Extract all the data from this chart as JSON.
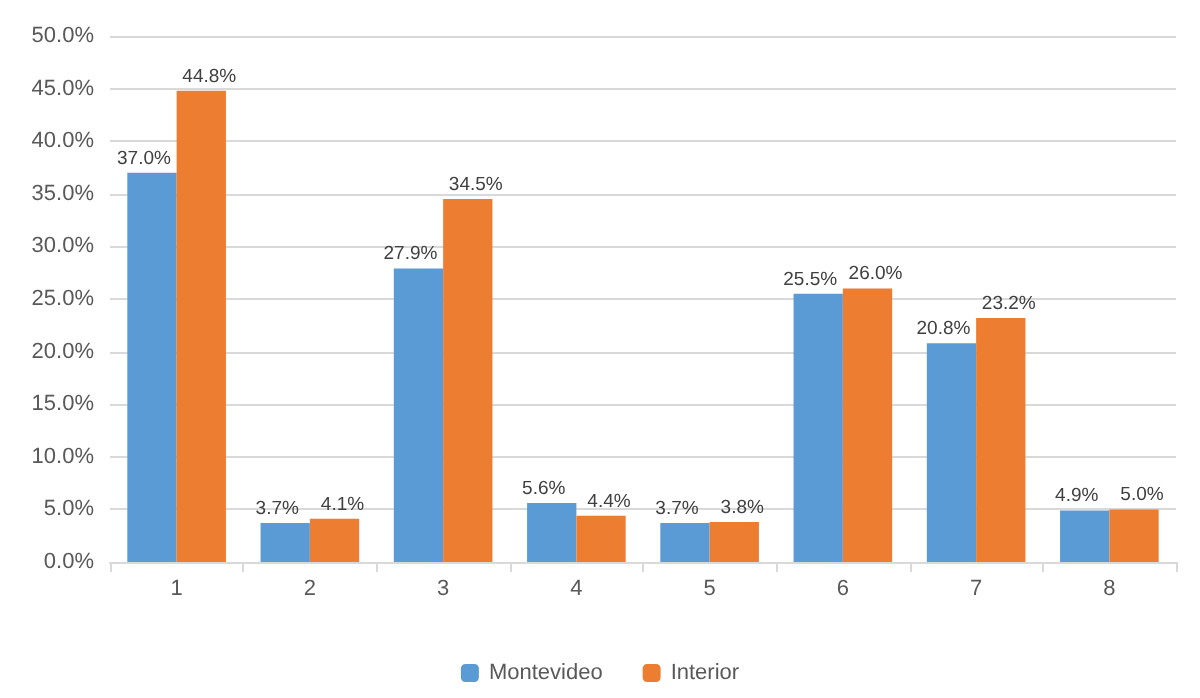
{
  "chart_data": {
    "type": "bar",
    "categories": [
      "1",
      "2",
      "3",
      "4",
      "5",
      "6",
      "7",
      "8"
    ],
    "series": [
      {
        "name": "Montevideo",
        "color": "#5b9bd5",
        "values": [
          37.0,
          3.7,
          27.9,
          5.6,
          3.7,
          25.5,
          20.8,
          4.9
        ],
        "value_labels": [
          "37.0%",
          "3.7%",
          "27.9%",
          "5.6%",
          "3.7%",
          "25.5%",
          "20.8%",
          "4.9%"
        ]
      },
      {
        "name": "Interior",
        "color": "#ed7d31",
        "values": [
          44.8,
          4.1,
          34.5,
          4.4,
          3.8,
          26.0,
          23.2,
          5.0
        ],
        "value_labels": [
          "44.8%",
          "4.1%",
          "34.5%",
          "4.4%",
          "3.8%",
          "26.0%",
          "23.2%",
          "5.0%"
        ]
      }
    ],
    "ylim": [
      0,
      50
    ],
    "yticks": [
      {
        "value": 0,
        "label": "0.0%"
      },
      {
        "value": 5,
        "label": "5.0%"
      },
      {
        "value": 10,
        "label": "10.0%"
      },
      {
        "value": 15,
        "label": "15.0%"
      },
      {
        "value": 20,
        "label": "20.0%"
      },
      {
        "value": 25,
        "label": "25.0%"
      },
      {
        "value": 30,
        "label": "30.0%"
      },
      {
        "value": 35,
        "label": "35.0%"
      },
      {
        "value": 40,
        "label": "40.0%"
      },
      {
        "value": 45,
        "label": "45.0%"
      },
      {
        "value": 50,
        "label": "50.0%"
      }
    ],
    "grid": true,
    "legend": "bottom"
  }
}
